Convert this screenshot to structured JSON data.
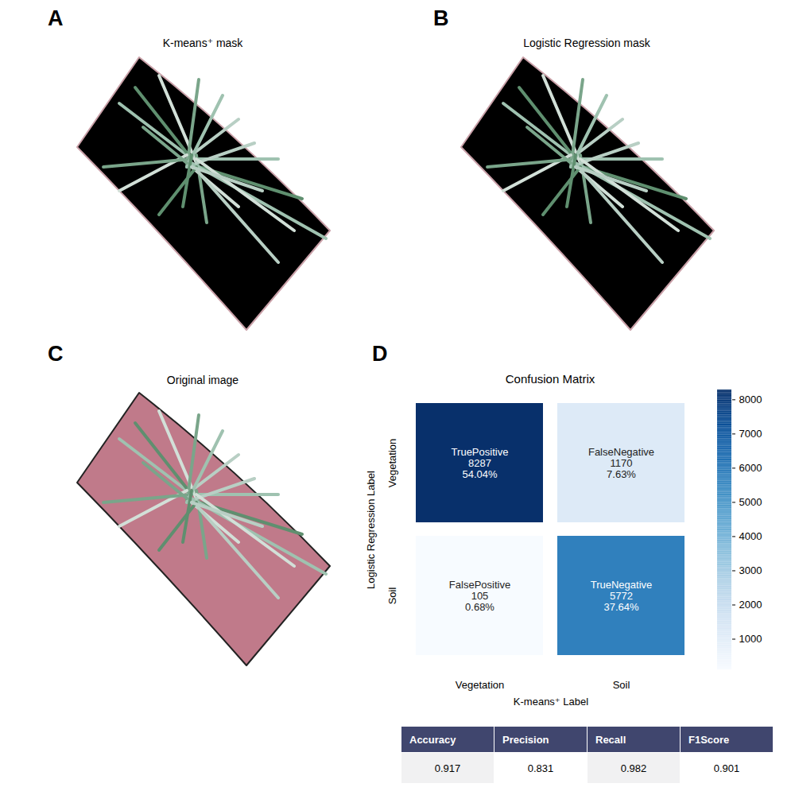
{
  "panels": [
    {
      "letter": "A",
      "title": "K-means⁺ mask"
    },
    {
      "letter": "B",
      "title": "Logistic Regression mask"
    },
    {
      "letter": "C",
      "title": "Original image"
    }
  ],
  "chart_data": {
    "type": "heatmap",
    "panel_letter": "D",
    "title": "Confusion Matrix",
    "x_label": "K-means⁺ Label",
    "y_label": "Logistic Regression Label",
    "x_categories": [
      "Vegetation",
      "Soil"
    ],
    "y_categories": [
      "Vegetation",
      "Soil"
    ],
    "cells": [
      {
        "x": "Vegetation",
        "y": "Vegetation",
        "name": "TruePositive",
        "value": 8287,
        "percent": "54.04%"
      },
      {
        "x": "Soil",
        "y": "Vegetation",
        "name": "FalseNegative",
        "value": 1170,
        "percent": "7.63%"
      },
      {
        "x": "Vegetation",
        "y": "Soil",
        "name": "FalsePositive",
        "value": 105,
        "percent": "0.68%"
      },
      {
        "x": "Soil",
        "y": "Soil",
        "name": "TrueNegative",
        "value": 5772,
        "percent": "37.64%"
      }
    ],
    "data_labels": true,
    "colorbar": {
      "range": [
        105,
        8287
      ],
      "ticks": [
        1000,
        2000,
        3000,
        4000,
        5000,
        6000,
        7000,
        8000
      ]
    }
  },
  "table": {
    "columns": [
      "Accuracy",
      "Precision",
      "Recall",
      "F1Score"
    ],
    "rows": [
      [
        0.917,
        0.831,
        0.982,
        0.901
      ]
    ]
  }
}
